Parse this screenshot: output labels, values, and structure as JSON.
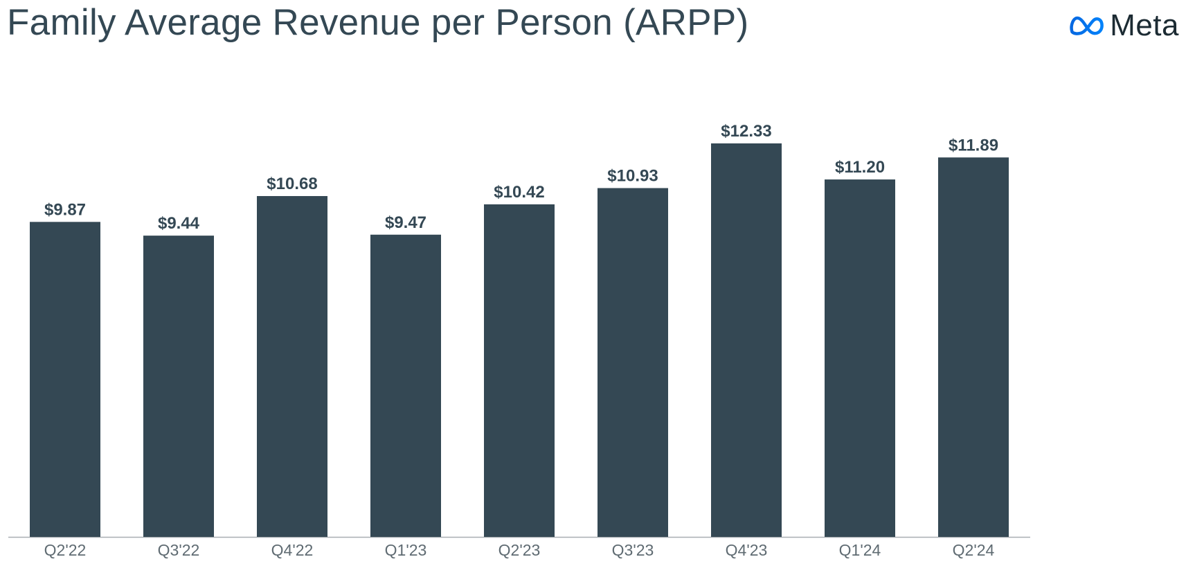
{
  "header": {
    "title": "Family Average Revenue per Person (ARPP)",
    "brand_name": "Meta",
    "brand_icon": "meta-infinity-logo"
  },
  "colors": {
    "bar": "#344854",
    "title": "#344854",
    "tick": "#5f6b72",
    "axis": "#a8aeb2",
    "brand_gradient_start": "#0668E1",
    "brand_gradient_end": "#0082FB"
  },
  "chart_data": {
    "type": "bar",
    "title": "Family Average Revenue per Person (ARPP)",
    "xlabel": "",
    "ylabel": "",
    "categories": [
      "Q2'22",
      "Q3'22",
      "Q4'22",
      "Q1'23",
      "Q2'23",
      "Q3'23",
      "Q4'23",
      "Q1'24",
      "Q2'24"
    ],
    "values": [
      9.87,
      9.44,
      10.68,
      9.47,
      10.42,
      10.93,
      12.33,
      11.2,
      11.89
    ],
    "data_labels": [
      "$9.87",
      "$9.44",
      "$10.68",
      "$9.47",
      "$10.42",
      "$10.93",
      "$12.33",
      "$11.20",
      "$11.89"
    ],
    "ylim": [
      0,
      12.33
    ],
    "grid": false,
    "legend": "none"
  }
}
